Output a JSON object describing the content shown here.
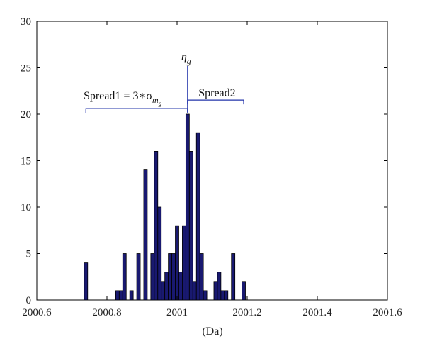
{
  "chart_data": {
    "type": "bar",
    "title": "",
    "xlabel": "(Da)",
    "ylabel": "",
    "xlim": [
      2000.6,
      2001.6
    ],
    "ylim": [
      0,
      30
    ],
    "xticks": [
      2000.6,
      2000.8,
      2001,
      2001.2,
      2001.4,
      2001.6
    ],
    "xtick_labels": [
      "2000.6",
      "2000.8",
      "2001",
      "2001.2",
      "2001.4",
      "2001.6"
    ],
    "yticks": [
      0,
      5,
      10,
      15,
      20,
      25,
      30
    ],
    "ytick_labels": [
      "0",
      "5",
      "10",
      "15",
      "20",
      "25",
      "30"
    ],
    "grid": false,
    "bar_width": 0.01,
    "bar_color": "#191970",
    "bar_edge_color": "#000000",
    "x": [
      2000.74,
      2000.83,
      2000.84,
      2000.85,
      2000.87,
      2000.89,
      2000.91,
      2000.93,
      2000.94,
      2000.95,
      2000.96,
      2000.97,
      2000.98,
      2000.99,
      2001.0,
      2001.01,
      2001.02,
      2001.03,
      2001.04,
      2001.05,
      2001.06,
      2001.07,
      2001.08,
      2001.09,
      2001.11,
      2001.12,
      2001.13,
      2001.14,
      2001.16,
      2001.19
    ],
    "values": [
      4,
      1,
      1,
      5,
      1,
      5,
      14,
      5,
      16,
      10,
      2,
      3,
      5,
      5,
      8,
      3,
      8,
      20,
      16,
      2,
      18,
      5,
      1,
      0,
      2,
      3,
      1,
      1,
      5,
      2
    ],
    "annotations": {
      "marker_x": 2001.03,
      "eta_label": "η",
      "eta_sub": "g",
      "spread1_label": "Spread1 = 3∗σ",
      "spread1_sub": "m",
      "spread1_subsub": "g",
      "spread1_range": [
        2000.74,
        2001.03
      ],
      "spread2_label": "Spread2",
      "spread2_range": [
        2001.03,
        2001.19
      ],
      "bracket_y": 20.6,
      "marker_top_y": 25.2,
      "bracket_color": "#2233aa"
    }
  }
}
